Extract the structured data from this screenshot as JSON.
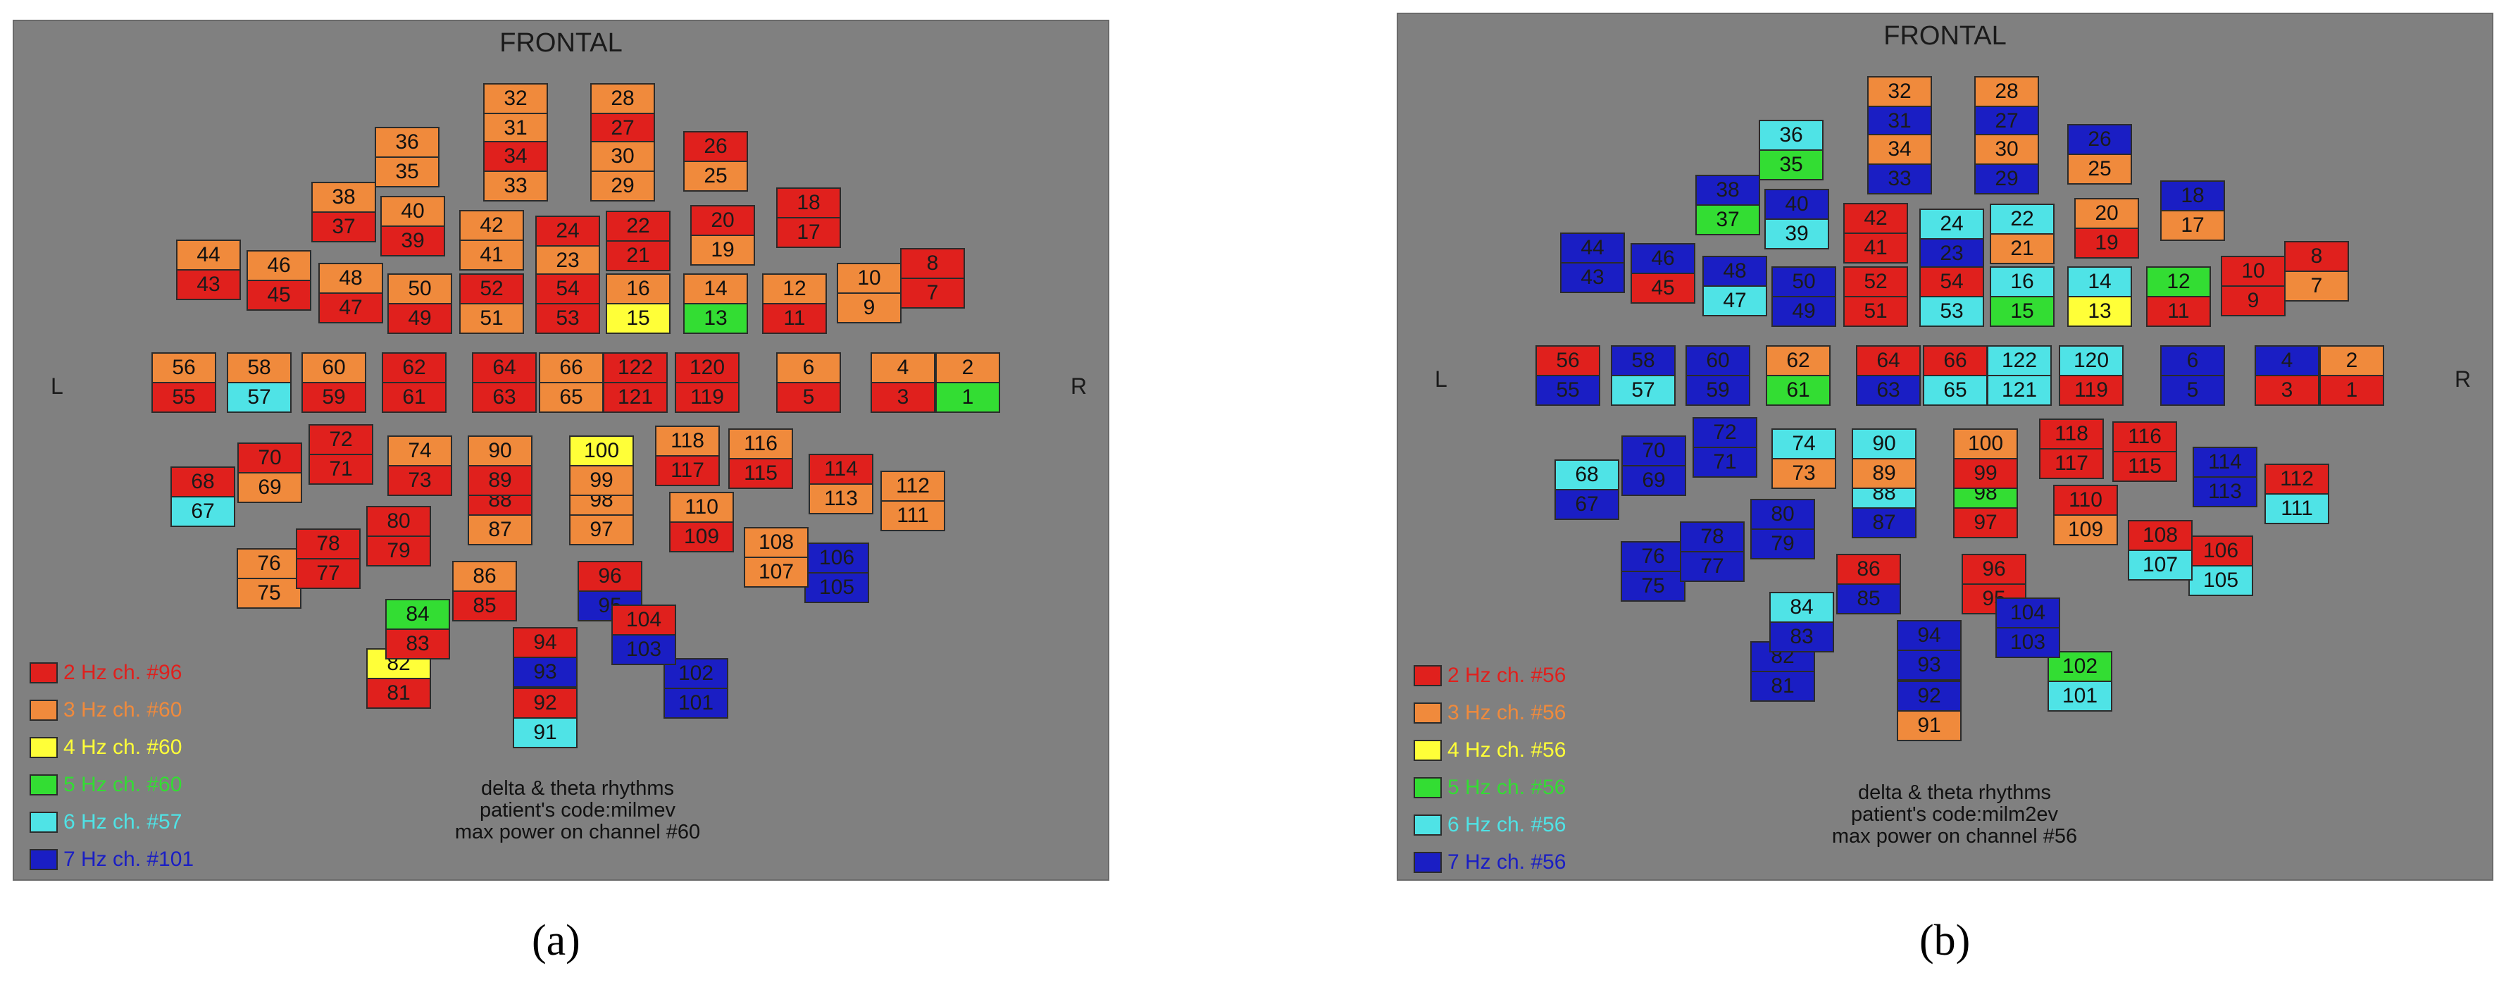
{
  "colors": {
    "2": "#e0201d",
    "3": "#f08a3c",
    "4": "#ffff38",
    "5": "#33dd33",
    "6": "#4fe3e6",
    "7": "#1a1ec4"
  },
  "labels": {
    "frontal": "FRONTAL",
    "left": "L",
    "right": "R"
  },
  "panels": [
    {
      "id": "a",
      "caption": "(a)",
      "legend": [
        {
          "hz": "2",
          "text": "2 Hz ch. #96"
        },
        {
          "hz": "3",
          "text": "3 Hz ch. #60"
        },
        {
          "hz": "4",
          "text": "4 Hz ch. #60"
        },
        {
          "hz": "5",
          "text": "5 Hz ch. #60"
        },
        {
          "hz": "6",
          "text": "6 Hz ch. #57"
        },
        {
          "hz": "7",
          "text": "7 Hz ch. #101"
        }
      ],
      "info": [
        "delta & theta rhythms",
        "patient's code:milmev",
        "max power on channel #60"
      ],
      "channels": [
        {
          "ch": "1",
          "hz": "5"
        },
        {
          "ch": "2",
          "hz": "3"
        },
        {
          "ch": "3",
          "hz": "2"
        },
        {
          "ch": "4",
          "hz": "3"
        },
        {
          "ch": "5",
          "hz": "2"
        },
        {
          "ch": "6",
          "hz": "3"
        },
        {
          "ch": "7",
          "hz": "2"
        },
        {
          "ch": "8",
          "hz": "2"
        },
        {
          "ch": "9",
          "hz": "3"
        },
        {
          "ch": "10",
          "hz": "3"
        },
        {
          "ch": "11",
          "hz": "2"
        },
        {
          "ch": "12",
          "hz": "3"
        },
        {
          "ch": "13",
          "hz": "5"
        },
        {
          "ch": "14",
          "hz": "3"
        },
        {
          "ch": "15",
          "hz": "4"
        },
        {
          "ch": "16",
          "hz": "3"
        },
        {
          "ch": "17",
          "hz": "2"
        },
        {
          "ch": "18",
          "hz": "2"
        },
        {
          "ch": "19",
          "hz": "3"
        },
        {
          "ch": "20",
          "hz": "2"
        },
        {
          "ch": "21",
          "hz": "2"
        },
        {
          "ch": "22",
          "hz": "2"
        },
        {
          "ch": "23",
          "hz": "3"
        },
        {
          "ch": "24",
          "hz": "2"
        },
        {
          "ch": "25",
          "hz": "3"
        },
        {
          "ch": "26",
          "hz": "2"
        },
        {
          "ch": "27",
          "hz": "2"
        },
        {
          "ch": "28",
          "hz": "3"
        },
        {
          "ch": "29",
          "hz": "3"
        },
        {
          "ch": "30",
          "hz": "3"
        },
        {
          "ch": "31",
          "hz": "3"
        },
        {
          "ch": "32",
          "hz": "3"
        },
        {
          "ch": "33",
          "hz": "3"
        },
        {
          "ch": "34",
          "hz": "2"
        },
        {
          "ch": "35",
          "hz": "3"
        },
        {
          "ch": "36",
          "hz": "3"
        },
        {
          "ch": "37",
          "hz": "2"
        },
        {
          "ch": "38",
          "hz": "3"
        },
        {
          "ch": "39",
          "hz": "2"
        },
        {
          "ch": "40",
          "hz": "3"
        },
        {
          "ch": "41",
          "hz": "3"
        },
        {
          "ch": "42",
          "hz": "3"
        },
        {
          "ch": "43",
          "hz": "2"
        },
        {
          "ch": "44",
          "hz": "3"
        },
        {
          "ch": "45",
          "hz": "2"
        },
        {
          "ch": "46",
          "hz": "3"
        },
        {
          "ch": "47",
          "hz": "2"
        },
        {
          "ch": "48",
          "hz": "3"
        },
        {
          "ch": "49",
          "hz": "2"
        },
        {
          "ch": "50",
          "hz": "3"
        },
        {
          "ch": "51",
          "hz": "3"
        },
        {
          "ch": "52",
          "hz": "2"
        },
        {
          "ch": "53",
          "hz": "2"
        },
        {
          "ch": "54",
          "hz": "2"
        },
        {
          "ch": "55",
          "hz": "2"
        },
        {
          "ch": "56",
          "hz": "3"
        },
        {
          "ch": "57",
          "hz": "6"
        },
        {
          "ch": "58",
          "hz": "3"
        },
        {
          "ch": "59",
          "hz": "2"
        },
        {
          "ch": "60",
          "hz": "3"
        },
        {
          "ch": "61",
          "hz": "2"
        },
        {
          "ch": "62",
          "hz": "2"
        },
        {
          "ch": "63",
          "hz": "2"
        },
        {
          "ch": "64",
          "hz": "2"
        },
        {
          "ch": "65",
          "hz": "3"
        },
        {
          "ch": "66",
          "hz": "3"
        },
        {
          "ch": "67",
          "hz": "6"
        },
        {
          "ch": "68",
          "hz": "2"
        },
        {
          "ch": "69",
          "hz": "3"
        },
        {
          "ch": "70",
          "hz": "2"
        },
        {
          "ch": "71",
          "hz": "2"
        },
        {
          "ch": "72",
          "hz": "2"
        },
        {
          "ch": "73",
          "hz": "2"
        },
        {
          "ch": "74",
          "hz": "3"
        },
        {
          "ch": "75",
          "hz": "3"
        },
        {
          "ch": "76",
          "hz": "3"
        },
        {
          "ch": "77",
          "hz": "2"
        },
        {
          "ch": "78",
          "hz": "2"
        },
        {
          "ch": "79",
          "hz": "2"
        },
        {
          "ch": "80",
          "hz": "2"
        },
        {
          "ch": "81",
          "hz": "2"
        },
        {
          "ch": "82",
          "hz": "4"
        },
        {
          "ch": "83",
          "hz": "2"
        },
        {
          "ch": "84",
          "hz": "5"
        },
        {
          "ch": "85",
          "hz": "2"
        },
        {
          "ch": "86",
          "hz": "3"
        },
        {
          "ch": "87",
          "hz": "3"
        },
        {
          "ch": "88",
          "hz": "2"
        },
        {
          "ch": "89",
          "hz": "2"
        },
        {
          "ch": "90",
          "hz": "3"
        },
        {
          "ch": "91",
          "hz": "6"
        },
        {
          "ch": "92",
          "hz": "2"
        },
        {
          "ch": "93",
          "hz": "7"
        },
        {
          "ch": "94",
          "hz": "2"
        },
        {
          "ch": "95",
          "hz": "7"
        },
        {
          "ch": "96",
          "hz": "2"
        },
        {
          "ch": "97",
          "hz": "3"
        },
        {
          "ch": "98",
          "hz": "3"
        },
        {
          "ch": "99",
          "hz": "3"
        },
        {
          "ch": "100",
          "hz": "4"
        },
        {
          "ch": "101",
          "hz": "7"
        },
        {
          "ch": "102",
          "hz": "7"
        },
        {
          "ch": "103",
          "hz": "7"
        },
        {
          "ch": "104",
          "hz": "2"
        },
        {
          "ch": "105",
          "hz": "7"
        },
        {
          "ch": "106",
          "hz": "7"
        },
        {
          "ch": "107",
          "hz": "3"
        },
        {
          "ch": "108",
          "hz": "3"
        },
        {
          "ch": "109",
          "hz": "2"
        },
        {
          "ch": "110",
          "hz": "3"
        },
        {
          "ch": "111",
          "hz": "3"
        },
        {
          "ch": "112",
          "hz": "3"
        },
        {
          "ch": "113",
          "hz": "3"
        },
        {
          "ch": "114",
          "hz": "2"
        },
        {
          "ch": "115",
          "hz": "2"
        },
        {
          "ch": "116",
          "hz": "3"
        },
        {
          "ch": "117",
          "hz": "2"
        },
        {
          "ch": "118",
          "hz": "3"
        },
        {
          "ch": "119",
          "hz": "2"
        },
        {
          "ch": "120",
          "hz": "2"
        },
        {
          "ch": "121",
          "hz": "2"
        },
        {
          "ch": "122",
          "hz": "2"
        }
      ]
    },
    {
      "id": "b",
      "caption": "(b)",
      "legend": [
        {
          "hz": "2",
          "text": "2 Hz ch. #56"
        },
        {
          "hz": "3",
          "text": "3 Hz ch. #56"
        },
        {
          "hz": "4",
          "text": "4 Hz ch. #56"
        },
        {
          "hz": "5",
          "text": "5 Hz ch. #56"
        },
        {
          "hz": "6",
          "text": "6 Hz ch. #56"
        },
        {
          "hz": "7",
          "text": "7 Hz ch. #56"
        }
      ],
      "info": [
        "delta & theta rhythms",
        "patient's code:milm2ev",
        "max power on channel #56"
      ],
      "channels": [
        {
          "ch": "1",
          "hz": "2"
        },
        {
          "ch": "2",
          "hz": "3"
        },
        {
          "ch": "3",
          "hz": "2"
        },
        {
          "ch": "4",
          "hz": "7"
        },
        {
          "ch": "5",
          "hz": "7"
        },
        {
          "ch": "6",
          "hz": "7"
        },
        {
          "ch": "7",
          "hz": "3"
        },
        {
          "ch": "8",
          "hz": "2"
        },
        {
          "ch": "9",
          "hz": "2"
        },
        {
          "ch": "10",
          "hz": "2"
        },
        {
          "ch": "11",
          "hz": "2"
        },
        {
          "ch": "12",
          "hz": "5"
        },
        {
          "ch": "13",
          "hz": "4"
        },
        {
          "ch": "14",
          "hz": "6"
        },
        {
          "ch": "15",
          "hz": "5"
        },
        {
          "ch": "16",
          "hz": "6"
        },
        {
          "ch": "17",
          "hz": "3"
        },
        {
          "ch": "18",
          "hz": "7"
        },
        {
          "ch": "19",
          "hz": "2"
        },
        {
          "ch": "20",
          "hz": "3"
        },
        {
          "ch": "21",
          "hz": "3"
        },
        {
          "ch": "22",
          "hz": "6"
        },
        {
          "ch": "23",
          "hz": "7"
        },
        {
          "ch": "24",
          "hz": "6"
        },
        {
          "ch": "25",
          "hz": "3"
        },
        {
          "ch": "26",
          "hz": "7"
        },
        {
          "ch": "27",
          "hz": "7"
        },
        {
          "ch": "28",
          "hz": "3"
        },
        {
          "ch": "29",
          "hz": "7"
        },
        {
          "ch": "30",
          "hz": "3"
        },
        {
          "ch": "31",
          "hz": "7"
        },
        {
          "ch": "32",
          "hz": "3"
        },
        {
          "ch": "33",
          "hz": "7"
        },
        {
          "ch": "34",
          "hz": "3"
        },
        {
          "ch": "35",
          "hz": "5"
        },
        {
          "ch": "36",
          "hz": "6"
        },
        {
          "ch": "37",
          "hz": "5"
        },
        {
          "ch": "38",
          "hz": "7"
        },
        {
          "ch": "39",
          "hz": "6"
        },
        {
          "ch": "40",
          "hz": "7"
        },
        {
          "ch": "41",
          "hz": "2"
        },
        {
          "ch": "42",
          "hz": "2"
        },
        {
          "ch": "43",
          "hz": "7"
        },
        {
          "ch": "44",
          "hz": "7"
        },
        {
          "ch": "45",
          "hz": "2"
        },
        {
          "ch": "46",
          "hz": "7"
        },
        {
          "ch": "47",
          "hz": "6"
        },
        {
          "ch": "48",
          "hz": "7"
        },
        {
          "ch": "49",
          "hz": "7"
        },
        {
          "ch": "50",
          "hz": "7"
        },
        {
          "ch": "51",
          "hz": "2"
        },
        {
          "ch": "52",
          "hz": "2"
        },
        {
          "ch": "53",
          "hz": "6"
        },
        {
          "ch": "54",
          "hz": "2"
        },
        {
          "ch": "55",
          "hz": "7"
        },
        {
          "ch": "56",
          "hz": "2"
        },
        {
          "ch": "57",
          "hz": "6"
        },
        {
          "ch": "58",
          "hz": "7"
        },
        {
          "ch": "59",
          "hz": "7"
        },
        {
          "ch": "60",
          "hz": "7"
        },
        {
          "ch": "61",
          "hz": "5"
        },
        {
          "ch": "62",
          "hz": "3"
        },
        {
          "ch": "63",
          "hz": "7"
        },
        {
          "ch": "64",
          "hz": "2"
        },
        {
          "ch": "65",
          "hz": "6"
        },
        {
          "ch": "66",
          "hz": "2"
        },
        {
          "ch": "67",
          "hz": "7"
        },
        {
          "ch": "68",
          "hz": "6"
        },
        {
          "ch": "69",
          "hz": "7"
        },
        {
          "ch": "70",
          "hz": "7"
        },
        {
          "ch": "71",
          "hz": "7"
        },
        {
          "ch": "72",
          "hz": "7"
        },
        {
          "ch": "73",
          "hz": "3"
        },
        {
          "ch": "74",
          "hz": "6"
        },
        {
          "ch": "75",
          "hz": "7"
        },
        {
          "ch": "76",
          "hz": "7"
        },
        {
          "ch": "77",
          "hz": "7"
        },
        {
          "ch": "78",
          "hz": "7"
        },
        {
          "ch": "79",
          "hz": "7"
        },
        {
          "ch": "80",
          "hz": "7"
        },
        {
          "ch": "81",
          "hz": "7"
        },
        {
          "ch": "82",
          "hz": "7"
        },
        {
          "ch": "83",
          "hz": "7"
        },
        {
          "ch": "84",
          "hz": "6"
        },
        {
          "ch": "85",
          "hz": "7"
        },
        {
          "ch": "86",
          "hz": "2"
        },
        {
          "ch": "87",
          "hz": "7"
        },
        {
          "ch": "88",
          "hz": "6"
        },
        {
          "ch": "89",
          "hz": "3"
        },
        {
          "ch": "90",
          "hz": "6"
        },
        {
          "ch": "91",
          "hz": "3"
        },
        {
          "ch": "92",
          "hz": "7"
        },
        {
          "ch": "93",
          "hz": "7"
        },
        {
          "ch": "94",
          "hz": "7"
        },
        {
          "ch": "95",
          "hz": "2"
        },
        {
          "ch": "96",
          "hz": "2"
        },
        {
          "ch": "97",
          "hz": "2"
        },
        {
          "ch": "98",
          "hz": "5"
        },
        {
          "ch": "99",
          "hz": "2"
        },
        {
          "ch": "100",
          "hz": "3"
        },
        {
          "ch": "101",
          "hz": "6"
        },
        {
          "ch": "102",
          "hz": "5"
        },
        {
          "ch": "103",
          "hz": "7"
        },
        {
          "ch": "104",
          "hz": "7"
        },
        {
          "ch": "105",
          "hz": "6"
        },
        {
          "ch": "106",
          "hz": "2"
        },
        {
          "ch": "107",
          "hz": "6"
        },
        {
          "ch": "108",
          "hz": "2"
        },
        {
          "ch": "109",
          "hz": "3"
        },
        {
          "ch": "110",
          "hz": "2"
        },
        {
          "ch": "111",
          "hz": "6"
        },
        {
          "ch": "112",
          "hz": "2"
        },
        {
          "ch": "113",
          "hz": "7"
        },
        {
          "ch": "114",
          "hz": "7"
        },
        {
          "ch": "115",
          "hz": "2"
        },
        {
          "ch": "116",
          "hz": "2"
        },
        {
          "ch": "117",
          "hz": "2"
        },
        {
          "ch": "118",
          "hz": "2"
        },
        {
          "ch": "119",
          "hz": "2"
        },
        {
          "ch": "120",
          "hz": "6"
        },
        {
          "ch": "121",
          "hz": "6"
        },
        {
          "ch": "122",
          "hz": "6"
        }
      ]
    }
  ]
}
